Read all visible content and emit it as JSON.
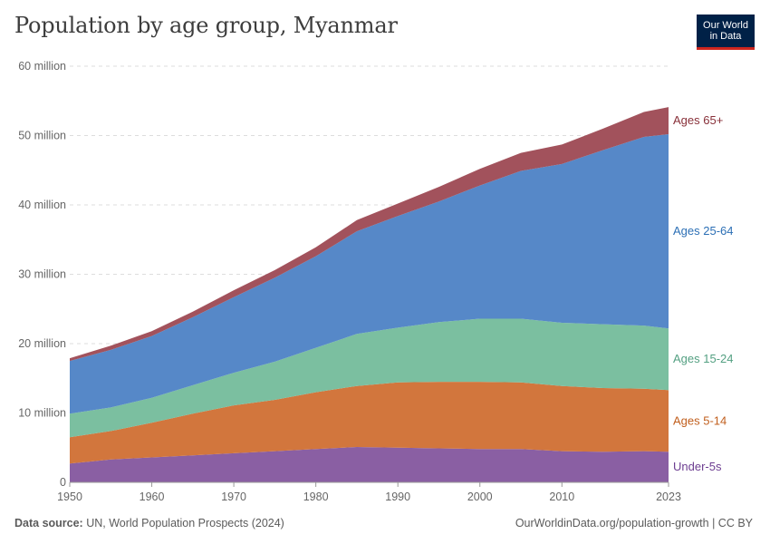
{
  "header": {
    "title": "Population by age group, Myanmar",
    "logo_line1": "Our World",
    "logo_line2": "in Data"
  },
  "footer": {
    "source_label": "Data source:",
    "source_text": "UN, World Population Prospects (2024)",
    "link": "OurWorldinData.org/population-growth | CC BY"
  },
  "colors": {
    "under5": "#8a5fa3",
    "age5_14": "#d2763d",
    "age15_24": "#7bbfa0",
    "age25_64": "#5688c8",
    "age65plus": "#a2525c",
    "label_under5": "#6d3e91",
    "label_age5_14": "#c15f1e",
    "label_age15_24": "#54a082",
    "label_age25_64": "#2c6fb5",
    "label_age65plus": "#883039"
  },
  "chart_data": {
    "type": "area",
    "stacked": true,
    "x": [
      1950,
      1955,
      1960,
      1965,
      1970,
      1975,
      1980,
      1985,
      1990,
      1995,
      2000,
      2005,
      2010,
      2015,
      2020,
      2023
    ],
    "ylim": [
      0,
      60
    ],
    "y_ticks": [
      "0",
      "10 million",
      "20 million",
      "30 million",
      "40 million",
      "50 million",
      "60 million"
    ],
    "y_tick_values": [
      0,
      10,
      20,
      30,
      40,
      50,
      60
    ],
    "x_ticks": [
      "1950",
      "1960",
      "1970",
      "1980",
      "1990",
      "2000",
      "2010",
      "2023"
    ],
    "x_tick_values": [
      1950,
      1960,
      1970,
      1980,
      1990,
      2000,
      2010,
      2023
    ],
    "grid": true,
    "unit": "million",
    "series": [
      {
        "name": "Under-5s",
        "key": "under5",
        "values": [
          2.7,
          3.3,
          3.6,
          3.9,
          4.2,
          4.5,
          4.8,
          5.1,
          5.0,
          4.9,
          4.8,
          4.8,
          4.5,
          4.4,
          4.5,
          4.4
        ]
      },
      {
        "name": "Ages 5-14",
        "key": "age5_14",
        "values": [
          3.8,
          4.1,
          5.0,
          6.0,
          6.9,
          7.4,
          8.2,
          8.8,
          9.4,
          9.6,
          9.7,
          9.6,
          9.4,
          9.2,
          9.0,
          8.9
        ]
      },
      {
        "name": "Ages 15-24",
        "key": "age15_24",
        "values": [
          3.4,
          3.4,
          3.6,
          4.1,
          4.7,
          5.5,
          6.4,
          7.5,
          7.9,
          8.6,
          9.1,
          9.2,
          9.1,
          9.2,
          9.1,
          8.9
        ]
      },
      {
        "name": "Ages 25-64",
        "key": "age25_64",
        "values": [
          7.6,
          8.3,
          8.9,
          9.8,
          10.9,
          12.1,
          13.2,
          14.8,
          16.1,
          17.4,
          19.2,
          21.3,
          22.9,
          25.1,
          27.2,
          28.0
        ]
      },
      {
        "name": "Ages 65+",
        "key": "age65plus",
        "values": [
          0.4,
          0.6,
          0.7,
          0.8,
          1.0,
          1.1,
          1.3,
          1.6,
          1.8,
          2.1,
          2.4,
          2.6,
          2.8,
          3.1,
          3.6,
          3.9
        ]
      }
    ]
  }
}
